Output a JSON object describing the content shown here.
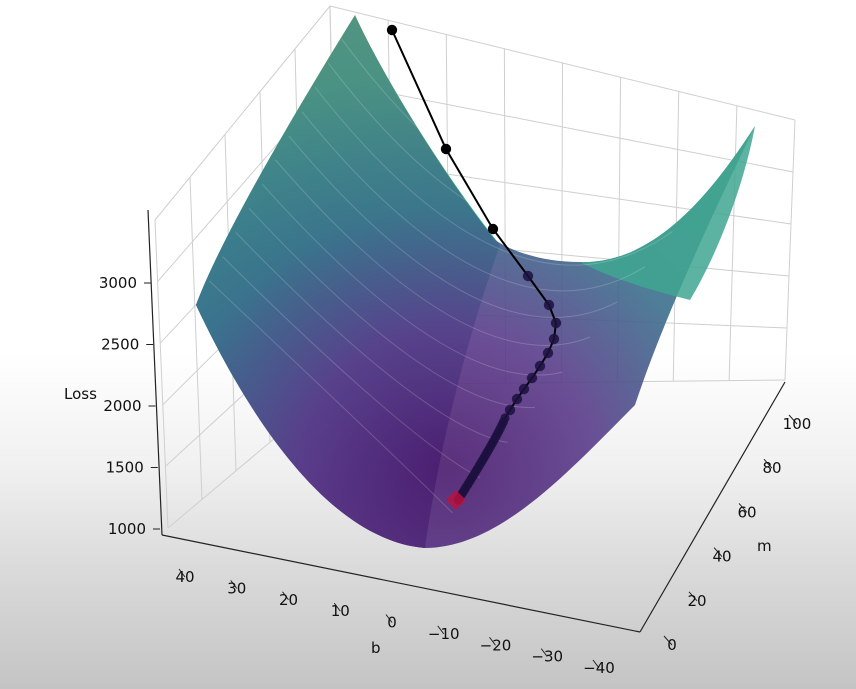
{
  "chart_data": {
    "type": "surface3d",
    "title": "",
    "xlabel": "b",
    "ylabel": "m",
    "zlabel": "Loss",
    "x_ticks": [
      40,
      30,
      20,
      10,
      0,
      -10,
      -20,
      -30,
      -40
    ],
    "x_tick_labels": [
      "40",
      "30",
      "20",
      "10",
      "0",
      "−10",
      "−20",
      "−30",
      "−40"
    ],
    "y_ticks": [
      0,
      20,
      40,
      60,
      80,
      100
    ],
    "y_tick_labels": [
      "0",
      "20",
      "40",
      "60",
      "80",
      "100"
    ],
    "z_ticks": [
      1000,
      1500,
      2000,
      2500,
      3000
    ],
    "z_tick_labels": [
      "1000",
      "1500",
      "2000",
      "2500",
      "3000"
    ],
    "surface": {
      "colormap": "viridis",
      "function": "loss(b, m)"
    },
    "descent_path": {
      "color": "#000000",
      "marker_end": "square",
      "marker_end_color": "#c0103c"
    },
    "grid": true,
    "legend": "none"
  }
}
